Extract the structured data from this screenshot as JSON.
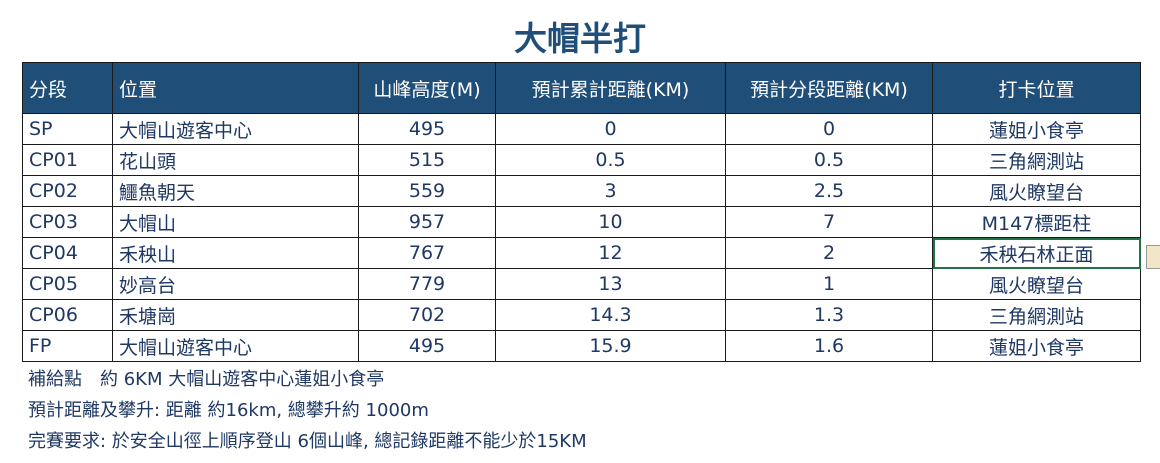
{
  "title": "大帽半打",
  "table": {
    "headers": [
      "分段",
      "位置",
      "山峰高度(M)",
      "預計累計距離(KM)",
      "預計分段距離(KM)",
      "打卡位置"
    ],
    "rows": [
      [
        "SP",
        "大帽山遊客中心",
        "495",
        "0",
        "0",
        "蓮姐小食亭"
      ],
      [
        "CP01",
        "花山頭",
        "515",
        "0.5",
        "0.5",
        "三角網測站"
      ],
      [
        "CP02",
        "鱷魚朝天",
        "559",
        "3",
        "2.5",
        "風火瞭望台"
      ],
      [
        "CP03",
        "大帽山",
        "957",
        "10",
        "7",
        "M147標距柱"
      ],
      [
        "CP04",
        "禾秧山",
        "767",
        "12",
        "2",
        "禾秧石林正面"
      ],
      [
        "CP05",
        "妙高台",
        "779",
        "13",
        "1",
        "風火瞭望台"
      ],
      [
        "CP06",
        "禾塘崗",
        "702",
        "14.3",
        "1.3",
        "三角網測站"
      ],
      [
        "FP",
        "大帽山遊客中心",
        "495",
        "15.9",
        "1.6",
        "蓮姐小食亭"
      ]
    ]
  },
  "notes": [
    "補給點　約 6KM 大帽山遊客中心蓮姐小食亭",
    "預計距離及攀升:  距離 約16km, 總攀升約 1000m",
    "完賽要求: 於安全山徑上順序登山 6個山峰, 總記錄距離不能少於15KM"
  ]
}
